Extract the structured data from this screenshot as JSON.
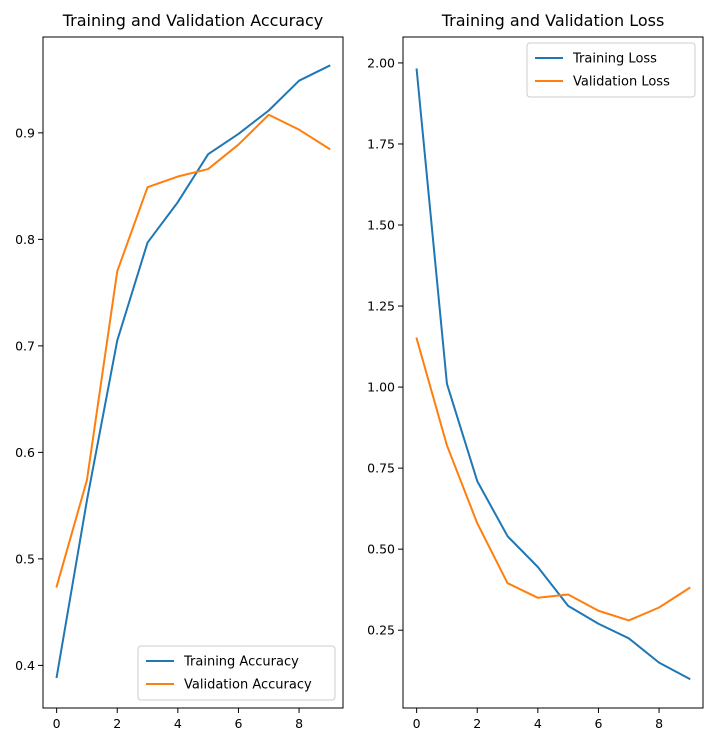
{
  "chart_data": [
    {
      "type": "line",
      "title": "Training and Validation Accuracy",
      "xlabel": "",
      "ylabel": "",
      "x": [
        0,
        1,
        2,
        3,
        4,
        5,
        6,
        7,
        8,
        9
      ],
      "xlim": [
        -0.45,
        9.45
      ],
      "ylim": [
        0.36,
        0.99
      ],
      "xticks": [
        0,
        2,
        4,
        6,
        8
      ],
      "yticks": [
        0.4,
        0.5,
        0.6,
        0.7,
        0.8,
        0.9
      ],
      "xtick_labels": [
        "0",
        "2",
        "4",
        "6",
        "8"
      ],
      "ytick_labels": [
        "0.4",
        "0.5",
        "0.6",
        "0.7",
        "0.8",
        "0.9"
      ],
      "grid": false,
      "legend_position": "lower right",
      "series": [
        {
          "name": "Training Accuracy",
          "color": "#1f77b4",
          "values": [
            0.389,
            0.555,
            0.705,
            0.797,
            0.835,
            0.88,
            0.899,
            0.921,
            0.949,
            0.963
          ]
        },
        {
          "name": "Validation Accuracy",
          "color": "#ff7f0e",
          "values": [
            0.474,
            0.574,
            0.77,
            0.849,
            0.859,
            0.866,
            0.889,
            0.917,
            0.903,
            0.885
          ]
        }
      ]
    },
    {
      "type": "line",
      "title": "Training and Validation Loss",
      "xlabel": "",
      "ylabel": "",
      "x": [
        0,
        1,
        2,
        3,
        4,
        5,
        6,
        7,
        8,
        9
      ],
      "xlim": [
        -0.45,
        9.45
      ],
      "ylim": [
        0.01,
        2.08
      ],
      "xticks": [
        0,
        2,
        4,
        6,
        8
      ],
      "yticks": [
        0.25,
        0.5,
        0.75,
        1.0,
        1.25,
        1.5,
        1.75,
        2.0
      ],
      "xtick_labels": [
        "0",
        "2",
        "4",
        "6",
        "8"
      ],
      "ytick_labels": [
        "0.25",
        "0.50",
        "0.75",
        "1.00",
        "1.25",
        "1.50",
        "1.75",
        "2.00"
      ],
      "grid": false,
      "legend_position": "upper right",
      "series": [
        {
          "name": "Training Loss",
          "color": "#1f77b4",
          "values": [
            1.98,
            1.01,
            0.71,
            0.54,
            0.445,
            0.325,
            0.27,
            0.225,
            0.15,
            0.1
          ]
        },
        {
          "name": "Validation Loss",
          "color": "#ff7f0e",
          "values": [
            1.15,
            0.82,
            0.58,
            0.395,
            0.35,
            0.36,
            0.31,
            0.28,
            0.32,
            0.38
          ]
        }
      ]
    }
  ]
}
